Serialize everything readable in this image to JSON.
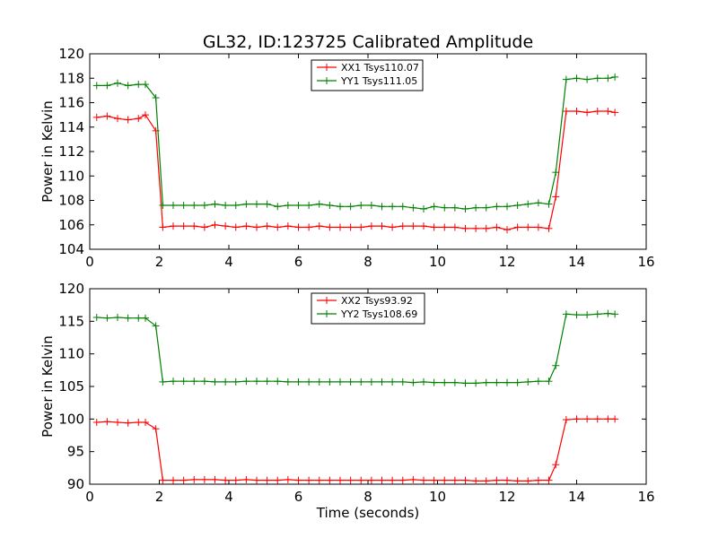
{
  "chart_data": [
    {
      "type": "line",
      "title": "GL32, ID:123725 Calibrated Amplitude",
      "xlabel": "",
      "ylabel": "Power in Kelvin",
      "xlim": [
        0,
        16
      ],
      "ylim": [
        104,
        120
      ],
      "xticks": [
        0,
        2,
        4,
        6,
        8,
        10,
        12,
        14,
        16
      ],
      "yticks": [
        104,
        106,
        108,
        110,
        112,
        114,
        116,
        118,
        120
      ],
      "legend": "top-center",
      "grid": false,
      "x": [
        0.2,
        0.5,
        0.8,
        1.1,
        1.4,
        1.6,
        1.9,
        2.1,
        2.4,
        2.7,
        3.0,
        3.3,
        3.6,
        3.9,
        4.2,
        4.5,
        4.8,
        5.1,
        5.4,
        5.7,
        6.0,
        6.3,
        6.6,
        6.9,
        7.2,
        7.5,
        7.8,
        8.1,
        8.4,
        8.7,
        9.0,
        9.3,
        9.6,
        9.9,
        10.2,
        10.5,
        10.8,
        11.1,
        11.4,
        11.7,
        12.0,
        12.3,
        12.6,
        12.9,
        13.2,
        13.4,
        13.7,
        14.0,
        14.3,
        14.6,
        14.9,
        15.1
      ],
      "series": [
        {
          "name": "XX1 Tsys110.07",
          "color": "#ff0000",
          "values": [
            114.8,
            114.9,
            114.7,
            114.6,
            114.7,
            115.0,
            113.7,
            105.8,
            105.9,
            105.9,
            105.9,
            105.8,
            106.0,
            105.9,
            105.8,
            105.9,
            105.8,
            105.9,
            105.8,
            105.9,
            105.8,
            105.8,
            105.9,
            105.8,
            105.8,
            105.8,
            105.8,
            105.9,
            105.9,
            105.8,
            105.9,
            105.9,
            105.9,
            105.8,
            105.8,
            105.8,
            105.7,
            105.7,
            105.7,
            105.8,
            105.6,
            105.8,
            105.8,
            105.8,
            105.7,
            108.3,
            115.3,
            115.3,
            115.2,
            115.3,
            115.3,
            115.2
          ]
        },
        {
          "name": "YY1 Tsys111.05",
          "color": "#008000",
          "values": [
            117.4,
            117.4,
            117.6,
            117.4,
            117.5,
            117.5,
            116.4,
            107.6,
            107.6,
            107.6,
            107.6,
            107.6,
            107.7,
            107.6,
            107.6,
            107.7,
            107.7,
            107.7,
            107.5,
            107.6,
            107.6,
            107.6,
            107.7,
            107.6,
            107.5,
            107.5,
            107.6,
            107.6,
            107.5,
            107.5,
            107.5,
            107.4,
            107.3,
            107.5,
            107.4,
            107.4,
            107.3,
            107.4,
            107.4,
            107.5,
            107.5,
            107.6,
            107.7,
            107.8,
            107.7,
            110.3,
            117.9,
            118.0,
            117.9,
            118.0,
            118.0,
            118.1
          ]
        }
      ]
    },
    {
      "type": "line",
      "title": "",
      "xlabel": "Time (seconds)",
      "ylabel": "Power in Kelvin",
      "xlim": [
        0,
        16
      ],
      "ylim": [
        90,
        120
      ],
      "xticks": [
        0,
        2,
        4,
        6,
        8,
        10,
        12,
        14,
        16
      ],
      "yticks": [
        90,
        95,
        100,
        105,
        110,
        115,
        120
      ],
      "legend": "top-center",
      "grid": false,
      "x": [
        0.2,
        0.5,
        0.8,
        1.1,
        1.4,
        1.6,
        1.9,
        2.1,
        2.4,
        2.7,
        3.0,
        3.3,
        3.6,
        3.9,
        4.2,
        4.5,
        4.8,
        5.1,
        5.4,
        5.7,
        6.0,
        6.3,
        6.6,
        6.9,
        7.2,
        7.5,
        7.8,
        8.1,
        8.4,
        8.7,
        9.0,
        9.3,
        9.6,
        9.9,
        10.2,
        10.5,
        10.8,
        11.1,
        11.4,
        11.7,
        12.0,
        12.3,
        12.6,
        12.9,
        13.2,
        13.4,
        13.7,
        14.0,
        14.3,
        14.6,
        14.9,
        15.1
      ],
      "series": [
        {
          "name": "XX2 Tsys93.92",
          "color": "#ff0000",
          "values": [
            99.5,
            99.6,
            99.5,
            99.4,
            99.5,
            99.5,
            98.5,
            90.6,
            90.6,
            90.6,
            90.7,
            90.7,
            90.7,
            90.6,
            90.6,
            90.7,
            90.6,
            90.6,
            90.6,
            90.7,
            90.6,
            90.6,
            90.6,
            90.6,
            90.6,
            90.6,
            90.6,
            90.6,
            90.6,
            90.6,
            90.6,
            90.7,
            90.6,
            90.6,
            90.6,
            90.6,
            90.6,
            90.5,
            90.5,
            90.6,
            90.6,
            90.5,
            90.5,
            90.6,
            90.6,
            93.0,
            99.9,
            100.0,
            100.0,
            100.0,
            100.0,
            100.0
          ]
        },
        {
          "name": "YY2 Tsys108.69",
          "color": "#008000",
          "values": [
            115.6,
            115.5,
            115.6,
            115.5,
            115.5,
            115.5,
            114.3,
            105.7,
            105.8,
            105.8,
            105.8,
            105.8,
            105.7,
            105.7,
            105.7,
            105.8,
            105.8,
            105.8,
            105.8,
            105.7,
            105.7,
            105.7,
            105.7,
            105.7,
            105.7,
            105.7,
            105.7,
            105.7,
            105.7,
            105.7,
            105.7,
            105.6,
            105.7,
            105.6,
            105.6,
            105.6,
            105.5,
            105.5,
            105.6,
            105.6,
            105.6,
            105.6,
            105.7,
            105.8,
            105.8,
            108.2,
            116.1,
            116.0,
            116.0,
            116.1,
            116.2,
            116.1
          ]
        }
      ]
    }
  ]
}
